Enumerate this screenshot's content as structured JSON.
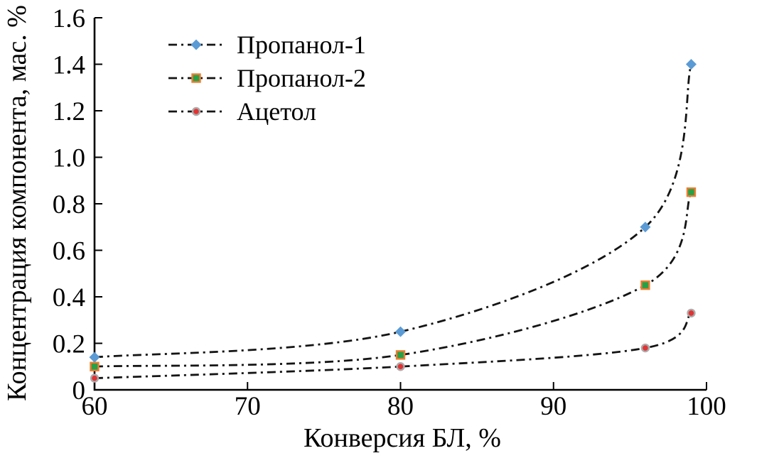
{
  "chart_data": {
    "type": "line",
    "title": "",
    "xlabel": "Конверсия БЛ, %",
    "ylabel": "Концентрация компонента, мас. %",
    "x": [
      60,
      80,
      96,
      99
    ],
    "series": [
      {
        "name": "Пропанол-1",
        "values": [
          0.14,
          0.25,
          0.7,
          1.4
        ],
        "marker": "diamond",
        "marker_color": "#5B9BD5",
        "marker_edge": "#5B9BD5"
      },
      {
        "name": "Пропанол-2",
        "values": [
          0.1,
          0.15,
          0.45,
          0.85
        ],
        "marker": "square",
        "marker_color": "#27A148",
        "marker_edge": "#ED7D31"
      },
      {
        "name": "Ацетол",
        "values": [
          0.05,
          0.1,
          0.18,
          0.33
        ],
        "marker": "circle",
        "marker_color": "#E23333",
        "marker_edge": "#ABABAB"
      }
    ],
    "line_color": "#141414",
    "line_style": "dash-dot",
    "axis_color": "#000000",
    "xlim": [
      60,
      100
    ],
    "ylim": [
      0,
      1.6
    ],
    "xticks": [
      60,
      70,
      80,
      90,
      100
    ],
    "yticks": [
      "0",
      "0.2",
      "0.4",
      "0.6",
      "0.8",
      "1.0",
      "1.2",
      "1.4",
      "1.6"
    ],
    "grid": false,
    "legend_position": "top-left"
  }
}
